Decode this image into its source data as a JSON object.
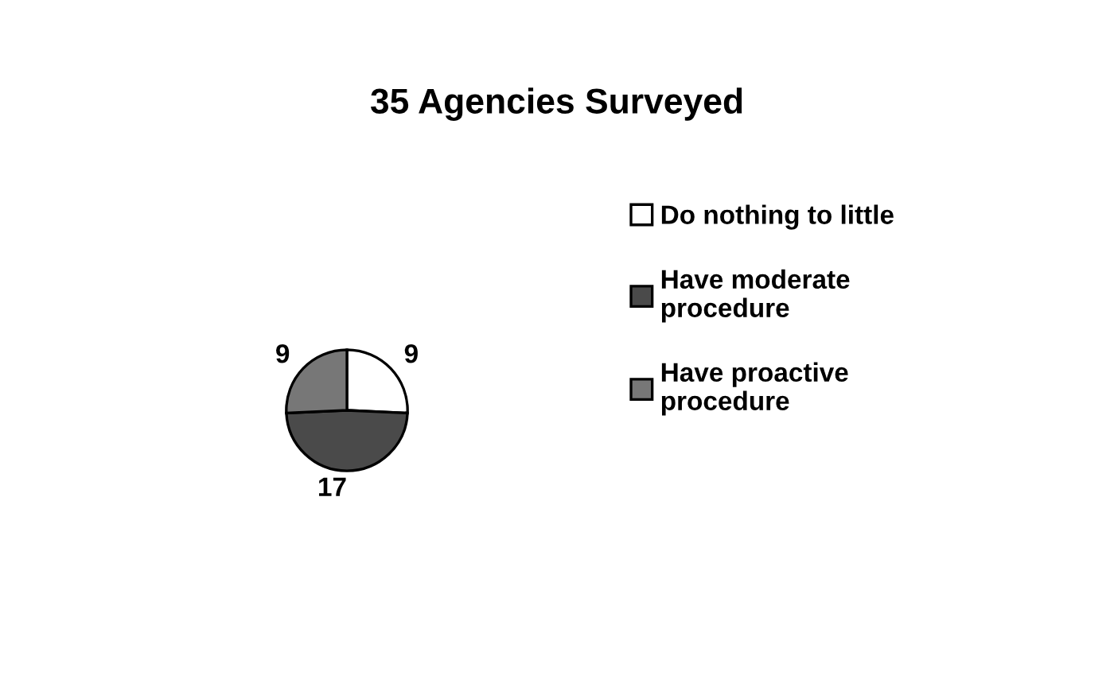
{
  "chart_data": {
    "type": "pie",
    "title": "35 Agencies Surveyed",
    "categories": [
      "Do nothing to little",
      "Have moderate\nprocedure",
      "Have proactive\nprocedure"
    ],
    "values": [
      9,
      17,
      9
    ],
    "colors": [
      "#ffffff",
      "#4a4a4a",
      "#777777"
    ],
    "data_labels": true,
    "legend": "right"
  }
}
